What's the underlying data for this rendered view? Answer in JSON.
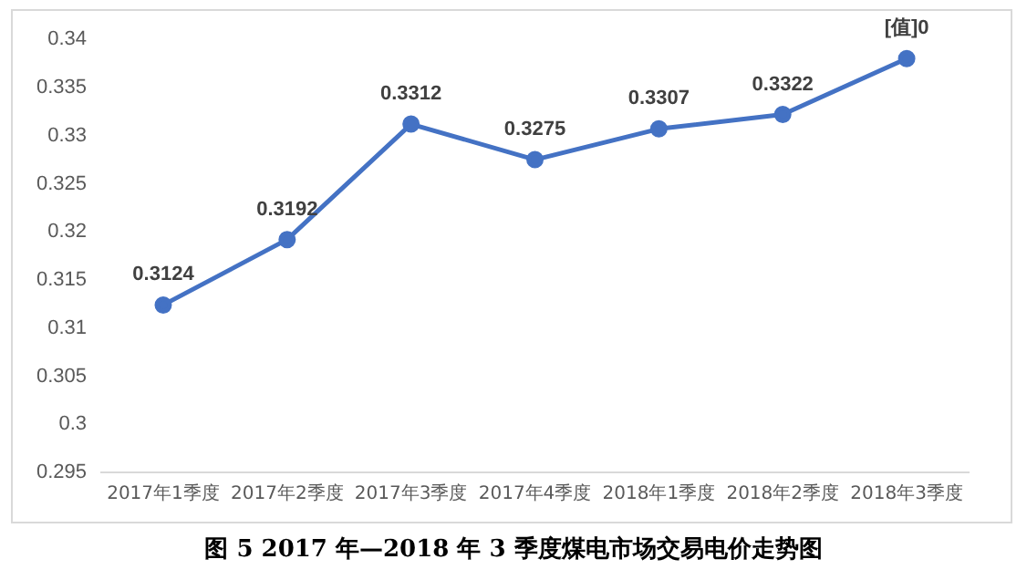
{
  "chart_data": {
    "type": "line",
    "title": "图 5  2017 年—2018 年 3 季度煤电市场交易电价走势图",
    "categories": [
      "2017年1季度",
      "2017年2季度",
      "2017年3季度",
      "2017年4季度",
      "2018年1季度",
      "2018年2季度",
      "2018年3季度"
    ],
    "series": [
      {
        "color": "#4472c4",
        "values": [
          0.3124,
          0.3192,
          0.3312,
          0.3275,
          0.3307,
          0.3322,
          0.338
        ],
        "value_labels": [
          "0.3124",
          "0.3192",
          "0.3312",
          "0.3275",
          "0.3307",
          "0.3322",
          "[值]0"
        ]
      }
    ],
    "ylim": [
      0.295,
      0.34
    ],
    "yticks": [
      0.295,
      0.3,
      0.305,
      0.31,
      0.315,
      0.32,
      0.325,
      0.33,
      0.335,
      0.34
    ],
    "grid": false,
    "legend": false,
    "marker": "circle",
    "line_style": "solid"
  }
}
